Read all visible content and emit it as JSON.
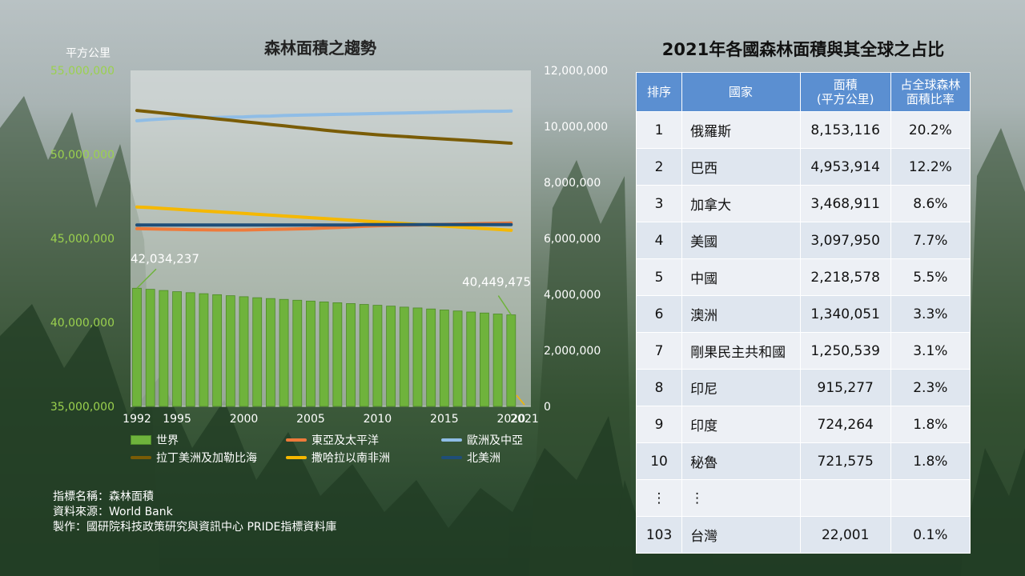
{
  "chart_title": "森林面積之趨勢",
  "left_axis_unit": "平方公里",
  "chart_data": {
    "type": "bar+line",
    "title": "森林面積之趨勢",
    "ylabel": "平方公里",
    "left_axis": {
      "ylim": [
        35000000,
        55000000
      ],
      "ticks": [
        "35,000,000",
        "40,000,000",
        "45,000,000",
        "50,000,000",
        "55,000,000"
      ],
      "tick_values": [
        35000000,
        40000000,
        45000000,
        50000000,
        55000000
      ]
    },
    "right_axis": {
      "ylim": [
        0,
        12000000
      ],
      "ticks": [
        "0",
        "2,000,000",
        "4,000,000",
        "6,000,000",
        "8,000,000",
        "10,000,000",
        "12,000,000"
      ],
      "tick_values": [
        0,
        2000000,
        4000000,
        6000000,
        8000000,
        10000000,
        12000000
      ]
    },
    "x_tick_labels": [
      "1992",
      "1995",
      "2000",
      "2005",
      "2010",
      "2015",
      "2020",
      "2021"
    ],
    "x_tick_years": [
      1992,
      1995,
      2000,
      2005,
      2010,
      2015,
      2020,
      2021
    ],
    "years": [
      1992,
      1993,
      1994,
      1995,
      1996,
      1997,
      1998,
      1999,
      2000,
      2001,
      2002,
      2003,
      2004,
      2005,
      2006,
      2007,
      2008,
      2009,
      2010,
      2011,
      2012,
      2013,
      2014,
      2015,
      2016,
      2017,
      2018,
      2019,
      2020
    ],
    "bar_series": {
      "name": "世界",
      "axis": "left",
      "color": "#6fb33c",
      "values": [
        42034237,
        41970000,
        41900000,
        41830000,
        41770000,
        41710000,
        41650000,
        41590000,
        41530000,
        41470000,
        41420000,
        41370000,
        41320000,
        41270000,
        41220000,
        41170000,
        41120000,
        41070000,
        41020000,
        40970000,
        40910000,
        40860000,
        40800000,
        40740000,
        40680000,
        40620000,
        40560000,
        40500000,
        40449475
      ]
    },
    "bar_annotations": [
      {
        "label": "42,034,237",
        "year": 1992
      },
      {
        "label": "40,449,475",
        "year": 2020
      }
    ],
    "line_series": [
      {
        "name": "東亞及太平洋",
        "axis": "right",
        "color": "#ef7a3a",
        "values": [
          6350000,
          6340000,
          6330000,
          6320000,
          6310000,
          6305000,
          6300000,
          6300000,
          6300000,
          6310000,
          6320000,
          6330000,
          6340000,
          6350000,
          6370000,
          6390000,
          6410000,
          6430000,
          6450000,
          6460000,
          6470000,
          6480000,
          6490000,
          6500000,
          6510000,
          6520000,
          6530000,
          6540000,
          6550000
        ]
      },
      {
        "name": "歐洲及中亞",
        "axis": "right",
        "color": "#8fbde6",
        "values": [
          10200000,
          10240000,
          10270000,
          10290000,
          10300000,
          10310000,
          10320000,
          10330000,
          10340000,
          10360000,
          10370000,
          10390000,
          10400000,
          10410000,
          10420000,
          10430000,
          10440000,
          10450000,
          10460000,
          10470000,
          10480000,
          10490000,
          10500000,
          10510000,
          10520000,
          10530000,
          10540000,
          10540000,
          10550000
        ]
      },
      {
        "name": "拉丁美洲及加勒比海",
        "axis": "right",
        "color": "#7a5c06",
        "values": [
          10570000,
          10520000,
          10470000,
          10420000,
          10370000,
          10320000,
          10270000,
          10220000,
          10170000,
          10120000,
          10070000,
          10020000,
          9970000,
          9920000,
          9870000,
          9820000,
          9780000,
          9740000,
          9700000,
          9670000,
          9640000,
          9610000,
          9580000,
          9550000,
          9520000,
          9490000,
          9460000,
          9430000,
          9400000
        ]
      },
      {
        "name": "撒哈拉以南非洲",
        "axis": "right",
        "color": "#f5b800",
        "values": [
          7120000,
          7100000,
          7070000,
          7040000,
          7010000,
          6980000,
          6950000,
          6920000,
          6890000,
          6860000,
          6830000,
          6800000,
          6770000,
          6740000,
          6710000,
          6680000,
          6650000,
          6620000,
          6590000,
          6560000,
          6530000,
          6500000,
          6470000,
          6440000,
          6410000,
          6380000,
          6350000,
          6320000,
          6290000
        ]
      },
      {
        "name": "北美洲",
        "axis": "right",
        "color": "#1f4e79",
        "values": [
          6480000,
          6480000,
          6480000,
          6480000,
          6480000,
          6480000,
          6480000,
          6480000,
          6480000,
          6480000,
          6480000,
          6480000,
          6480000,
          6480000,
          6480000,
          6480000,
          6480000,
          6490000,
          6490000,
          6490000,
          6490000,
          6490000,
          6490000,
          6490000,
          6490000,
          6490000,
          6490000,
          6490000,
          6490000
        ]
      }
    ],
    "legend_position": "bottom"
  },
  "legend": [
    {
      "label": "世界",
      "kind": "bar",
      "color": "#6fb33c"
    },
    {
      "label": "東亞及太平洋",
      "kind": "line",
      "color": "#ef7a3a"
    },
    {
      "label": "歐洲及中亞",
      "kind": "line",
      "color": "#8fbde6"
    },
    {
      "label": "拉丁美洲及加勒比海",
      "kind": "line",
      "color": "#7a5c06"
    },
    {
      "label": "撒哈拉以南非洲",
      "kind": "line",
      "color": "#f5b800"
    },
    {
      "label": "北美洲",
      "kind": "line",
      "color": "#1f4e79"
    }
  ],
  "source": {
    "indicator": "指標名稱：森林面積",
    "data_source": "資料來源：World Bank",
    "producer": "製作：國研院科技政策研究與資訊中心 PRIDE指標資料庫"
  },
  "table": {
    "title": "2021年各國森林面積與其全球之占比",
    "headers": {
      "rank": "排序",
      "country": "國家",
      "area_line1": "面積",
      "area_line2": "(平方公里)",
      "share_line1": "占全球森林",
      "share_line2": "面積比率"
    },
    "rows": [
      {
        "rank": "1",
        "country": "俄羅斯",
        "area": "8,153,116",
        "share": "20.2%"
      },
      {
        "rank": "2",
        "country": "巴西",
        "area": "4,953,914",
        "share": "12.2%"
      },
      {
        "rank": "3",
        "country": "加拿大",
        "area": "3,468,911",
        "share": "8.6%"
      },
      {
        "rank": "4",
        "country": "美國",
        "area": "3,097,950",
        "share": "7.7%"
      },
      {
        "rank": "5",
        "country": "中國",
        "area": "2,218,578",
        "share": "5.5%"
      },
      {
        "rank": "6",
        "country": "澳洲",
        "area": "1,340,051",
        "share": "3.3%"
      },
      {
        "rank": "7",
        "country": "剛果民主共和國",
        "area": "1,250,539",
        "share": "3.1%"
      },
      {
        "rank": "8",
        "country": "印尼",
        "area": "915,277",
        "share": "2.3%"
      },
      {
        "rank": "9",
        "country": "印度",
        "area": "724,264",
        "share": "1.8%"
      },
      {
        "rank": "10",
        "country": "秘魯",
        "area": "721,575",
        "share": "1.8%"
      },
      {
        "rank": "⋮",
        "country": "⋮",
        "area": "",
        "share": ""
      },
      {
        "rank": "103",
        "country": "台灣",
        "area": "22,001",
        "share": "0.1%"
      }
    ]
  },
  "colors": {
    "left_axis_text": "#9bd14e",
    "right_axis_text": "#ffffff",
    "table_header": "#5b8fd1"
  }
}
